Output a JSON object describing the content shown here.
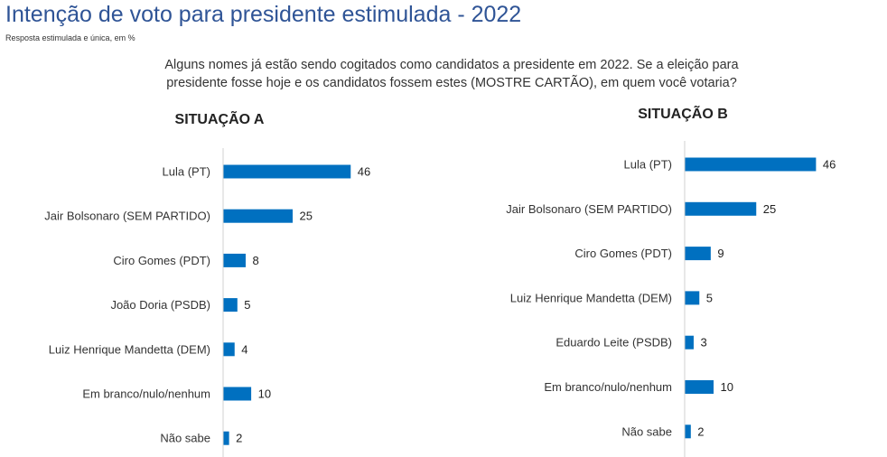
{
  "title": "Intenção de voto para presidente estimulada - 2022",
  "subtitle": "Resposta estimulada e única, em %",
  "question": {
    "line1": "Alguns nomes já estão sendo cogitados como candidatos a presidente em 2022. Se a eleição para",
    "line2": "presidente fosse hoje e os candidatos fossem estes (MOSTRE CARTÃO), em quem você votaria?"
  },
  "colors": {
    "bar": "#0070c0",
    "title": "#2f5496"
  },
  "chart_data": [
    {
      "type": "bar",
      "orientation": "horizontal",
      "title": "SITUAÇÃO A",
      "categories": [
        "Lula (PT)",
        "Jair Bolsonaro (SEM PARTIDO)",
        "Ciro Gomes (PDT)",
        "João Doria (PSDB)",
        "Luiz Henrique Mandetta (DEM)",
        "Em branco/nulo/nenhum",
        "Não sabe"
      ],
      "values": [
        46,
        25,
        8,
        5,
        4,
        10,
        2
      ],
      "xlim": [
        0,
        100
      ],
      "grid": false,
      "legend": "none"
    },
    {
      "type": "bar",
      "orientation": "horizontal",
      "title": "SITUAÇÃO B",
      "categories": [
        "Lula (PT)",
        "Jair Bolsonaro (SEM PARTIDO)",
        "Ciro Gomes (PDT)",
        "Luiz Henrique Mandetta (DEM)",
        "Eduardo Leite (PSDB)",
        "Em branco/nulo/nenhum",
        "Não sabe"
      ],
      "values": [
        46,
        25,
        9,
        5,
        3,
        10,
        2
      ],
      "xlim": [
        0,
        100
      ],
      "grid": false,
      "legend": "none"
    }
  ]
}
